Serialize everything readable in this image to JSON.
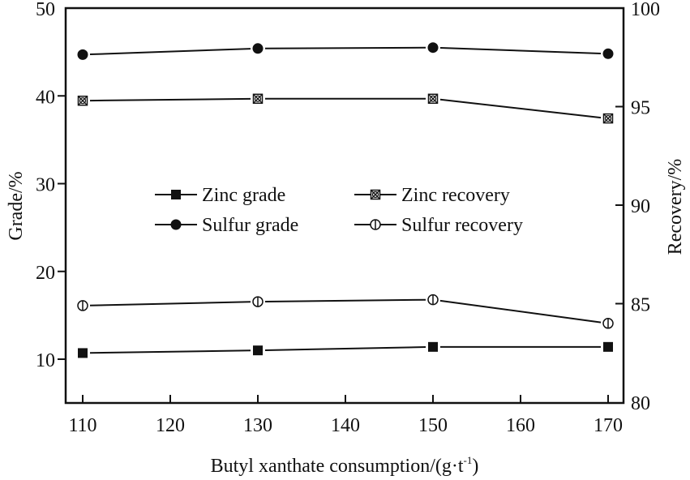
{
  "chart_data": {
    "type": "line",
    "title": "",
    "xlabel": "Butyl xanthate consumption/(g·t",
    "xlabel_sup": "-1",
    "xlabel_end": ")",
    "ylabel": "Grade/%",
    "y2label": "Recovery/%",
    "x": [
      110,
      130,
      150,
      170
    ],
    "xlim": [
      108,
      172
    ],
    "xticks": [
      110,
      120,
      130,
      140,
      150,
      160,
      170
    ],
    "ylim": [
      5,
      50
    ],
    "yticks": [
      10,
      20,
      30,
      40,
      50
    ],
    "y2lim": [
      80,
      100
    ],
    "y2ticks": [
      80,
      85,
      90,
      95,
      100
    ],
    "grid": false,
    "legend_placement": "center",
    "series": [
      {
        "name": "Zinc grade",
        "axis": "left",
        "marker": "square-filled",
        "values": [
          10.7,
          11.0,
          11.4,
          11.4
        ]
      },
      {
        "name": "Sulfur grade",
        "axis": "left",
        "marker": "circle-filled",
        "values": [
          44.7,
          45.4,
          45.5,
          44.8
        ]
      },
      {
        "name": "Zinc recovery",
        "axis": "right",
        "marker": "square-crossed",
        "values": [
          95.3,
          95.4,
          95.4,
          94.4
        ]
      },
      {
        "name": "Sulfur recovery",
        "axis": "right",
        "marker": "circle-barred",
        "values": [
          84.9,
          85.1,
          85.2,
          84.0
        ]
      }
    ],
    "colors": {
      "line": "#111111",
      "axis": "#111111",
      "background": "#ffffff"
    }
  }
}
